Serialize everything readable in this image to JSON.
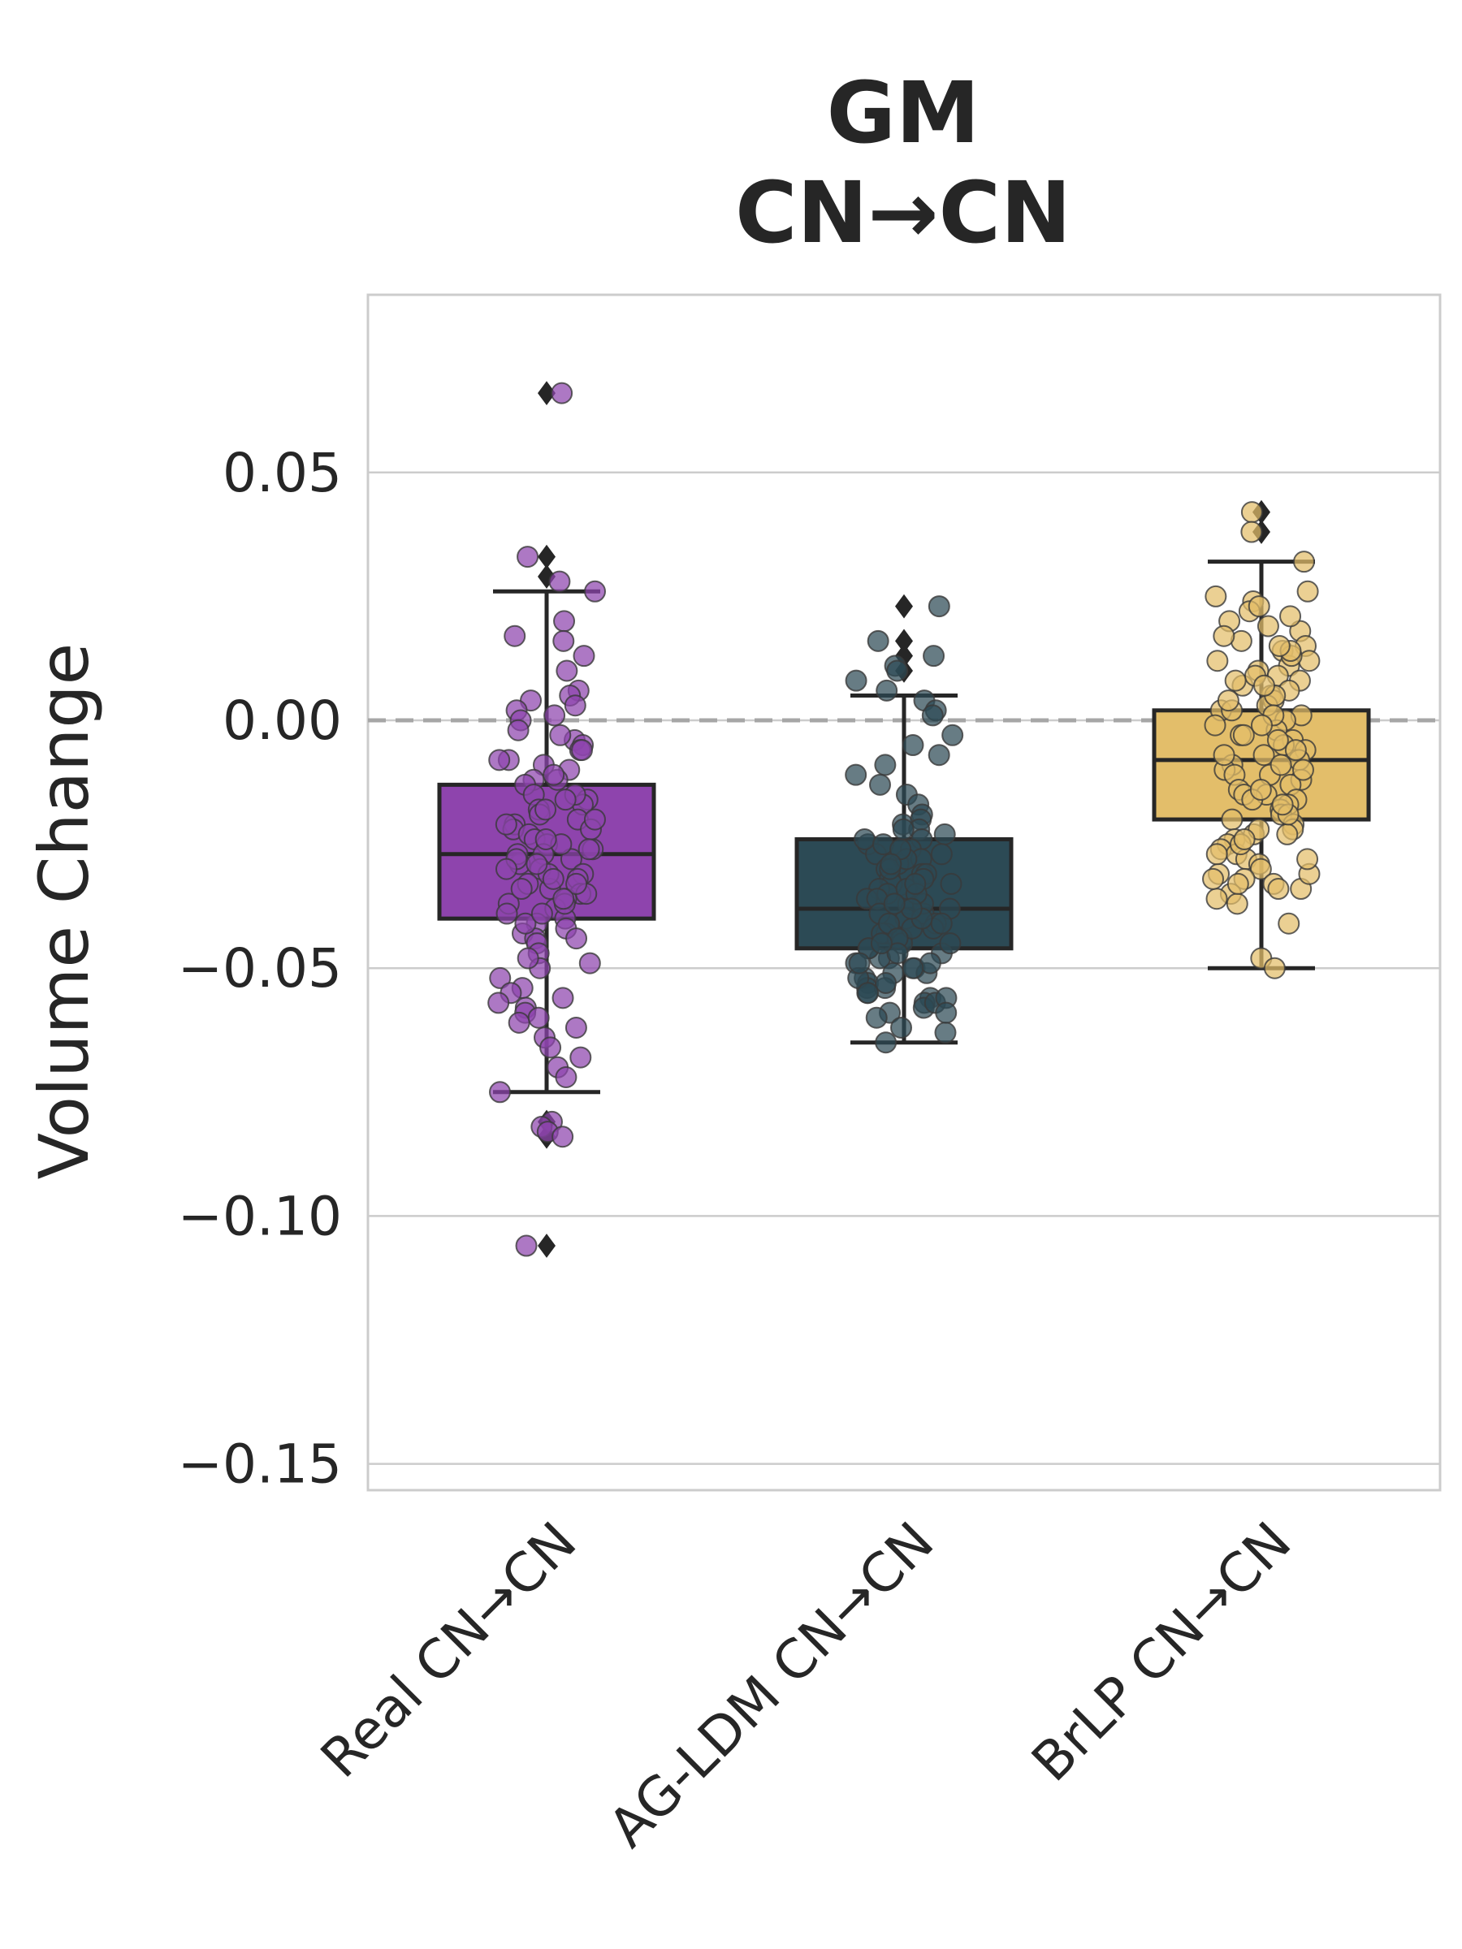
{
  "chart_data": {
    "type": "box",
    "title_lines": [
      "GM",
      "CN→CN"
    ],
    "ylabel": "Volume Change",
    "xlabel": "",
    "ylim": [
      -0.155,
      0.086
    ],
    "yticks": [
      0.05,
      0.0,
      -0.05,
      -0.1,
      -0.15
    ],
    "ytick_labels": [
      "0.05",
      "0.00",
      "−0.05",
      "−0.10",
      "−0.15"
    ],
    "reference_line": {
      "y": 0.0,
      "style": "dashed"
    },
    "grid": true,
    "categories": [
      "Real CN→CN",
      "AG-LDM CN→CN",
      "BrLP CN→CN"
    ],
    "colors": [
      "#8e44ad",
      "#2c4a55",
      "#e3be6a"
    ],
    "boxes": [
      {
        "q1": -0.04,
        "median": -0.027,
        "q3": -0.013,
        "whisker_low": -0.075,
        "whisker_high": 0.026,
        "outliers": [
          0.066,
          0.033,
          0.029,
          -0.081,
          -0.084,
          -0.106
        ]
      },
      {
        "q1": -0.046,
        "median": -0.038,
        "q3": -0.024,
        "whisker_low": -0.065,
        "whisker_high": 0.005,
        "outliers": [
          0.023,
          0.016,
          0.013,
          0.01
        ]
      },
      {
        "q1": -0.02,
        "median": -0.008,
        "q3": 0.002,
        "whisker_low": -0.05,
        "whisker_high": 0.032,
        "outliers": [
          0.042,
          0.038
        ]
      }
    ],
    "points": [
      [
        0.066,
        0.033,
        0.028,
        0.026,
        0.02,
        0.016,
        0.017,
        0.013,
        0.01,
        0.006,
        0.005,
        0.004,
        0.003,
        0.002,
        0.001,
        0.0,
        -0.002,
        -0.004,
        -0.005,
        -0.006,
        -0.008,
        -0.009,
        -0.01,
        -0.012,
        -0.013,
        -0.015,
        -0.016,
        -0.017,
        -0.018,
        -0.019,
        -0.02,
        -0.021,
        -0.022,
        -0.023,
        -0.024,
        -0.025,
        -0.026,
        -0.027,
        -0.028,
        -0.029,
        -0.03,
        -0.031,
        -0.032,
        -0.033,
        -0.034,
        -0.035,
        -0.036,
        -0.037,
        -0.038,
        -0.039,
        -0.04,
        -0.041,
        -0.042,
        -0.043,
        -0.044,
        -0.045,
        -0.047,
        -0.049,
        -0.05,
        -0.052,
        -0.054,
        -0.055,
        -0.056,
        -0.057,
        -0.058,
        -0.059,
        -0.06,
        -0.061,
        -0.062,
        -0.064,
        -0.066,
        -0.068,
        -0.07,
        -0.072,
        -0.075,
        -0.081,
        -0.082,
        -0.083,
        -0.084,
        -0.106,
        -0.018,
        -0.022,
        -0.027,
        -0.031,
        -0.035,
        -0.012,
        -0.008,
        -0.003,
        -0.025,
        -0.029,
        -0.033,
        -0.037,
        -0.041,
        -0.015,
        -0.02,
        -0.024,
        -0.028,
        -0.032,
        -0.036,
        -0.006,
        -0.011,
        -0.016,
        -0.021,
        -0.026,
        -0.03,
        -0.034,
        -0.039,
        -0.044,
        -0.048
      ],
      [
        0.023,
        0.016,
        0.013,
        0.011,
        0.01,
        0.008,
        0.006,
        0.004,
        0.002,
        0.001,
        -0.003,
        -0.005,
        -0.007,
        -0.009,
        -0.011,
        -0.013,
        -0.015,
        -0.017,
        -0.019,
        -0.02,
        -0.021,
        -0.022,
        -0.023,
        -0.024,
        -0.025,
        -0.026,
        -0.027,
        -0.028,
        -0.029,
        -0.03,
        -0.031,
        -0.032,
        -0.033,
        -0.034,
        -0.035,
        -0.036,
        -0.037,
        -0.038,
        -0.039,
        -0.04,
        -0.041,
        -0.042,
        -0.043,
        -0.044,
        -0.045,
        -0.046,
        -0.047,
        -0.048,
        -0.049,
        -0.05,
        -0.051,
        -0.052,
        -0.053,
        -0.054,
        -0.055,
        -0.056,
        -0.057,
        -0.058,
        -0.059,
        -0.06,
        -0.062,
        -0.063,
        -0.065,
        -0.024,
        -0.027,
        -0.03,
        -0.033,
        -0.036,
        -0.039,
        -0.042,
        -0.045,
        -0.048,
        -0.051,
        -0.054,
        -0.057,
        -0.025,
        -0.028,
        -0.031,
        -0.034,
        -0.037,
        -0.04,
        -0.043,
        -0.046,
        -0.049,
        -0.052,
        -0.055,
        -0.022,
        -0.026,
        -0.029,
        -0.032,
        -0.035,
        -0.038,
        -0.041,
        -0.044,
        -0.047,
        -0.05,
        -0.053,
        -0.056,
        -0.059,
        -0.033,
        -0.037,
        -0.041,
        -0.045,
        -0.049
      ],
      [
        0.042,
        0.038,
        0.032,
        0.026,
        0.025,
        0.024,
        0.022,
        0.02,
        0.018,
        0.016,
        0.015,
        0.014,
        0.012,
        0.011,
        0.01,
        0.009,
        0.008,
        0.007,
        0.006,
        0.005,
        0.004,
        0.003,
        0.002,
        0.001,
        0.0,
        -0.001,
        -0.002,
        -0.003,
        -0.004,
        -0.005,
        -0.006,
        -0.007,
        -0.008,
        -0.009,
        -0.01,
        -0.011,
        -0.012,
        -0.013,
        -0.014,
        -0.015,
        -0.016,
        -0.017,
        -0.018,
        -0.019,
        -0.02,
        -0.021,
        -0.022,
        -0.023,
        -0.024,
        -0.025,
        -0.026,
        -0.027,
        -0.028,
        -0.029,
        -0.03,
        -0.031,
        -0.032,
        -0.033,
        -0.034,
        -0.035,
        -0.036,
        -0.037,
        -0.041,
        -0.048,
        -0.05,
        0.019,
        0.017,
        0.013,
        0.009,
        0.005,
        0.001,
        -0.003,
        -0.007,
        -0.011,
        -0.015,
        -0.019,
        -0.023,
        -0.027,
        -0.031,
        0.021,
        0.014,
        0.008,
        0.002,
        -0.004,
        -0.01,
        -0.016,
        -0.022,
        -0.028,
        -0.034,
        0.023,
        0.015,
        0.007,
        -0.001,
        -0.009,
        -0.017,
        -0.025,
        -0.033,
        0.012,
        0.004,
        -0.006,
        -0.014,
        -0.024,
        -0.032
      ]
    ]
  }
}
